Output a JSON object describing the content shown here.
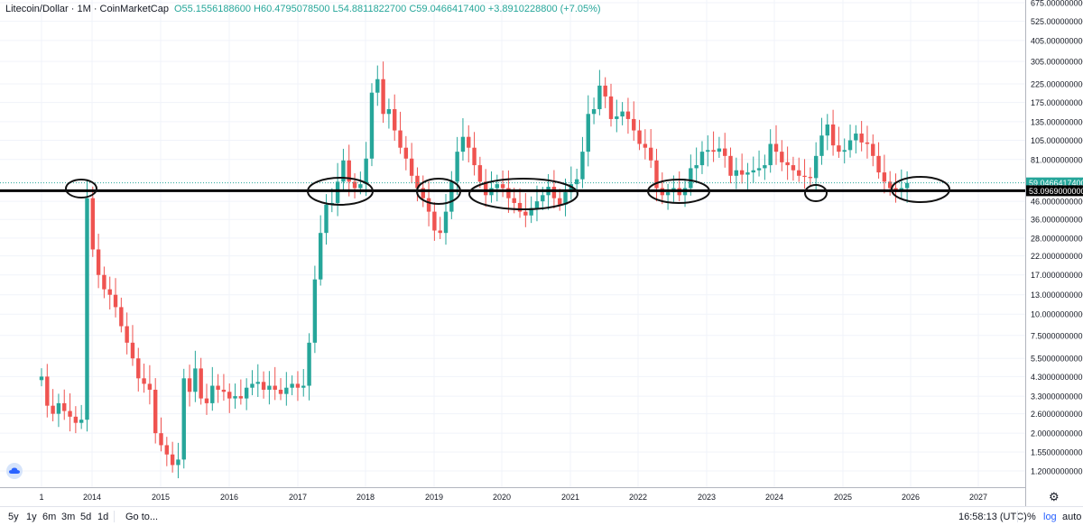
{
  "header": {
    "symbol": "Litecoin/Dollar · 1M · CoinMarketCap",
    "ohlc": "O55.1556188600  H60.4795078500  L54.8811822700  C59.0466417400  +3.8910228800 (+7.05%)"
  },
  "bottom_bar": {
    "timeframes": [
      "5y",
      "1y",
      "6m",
      "3m",
      "5d",
      "1d"
    ],
    "goto": "Go to...",
    "time": "16:58:13 (UTC)",
    "percent": "%",
    "log": "log",
    "auto": "auto"
  },
  "colors": {
    "up": "#26a69a",
    "down": "#ef5350",
    "grid": "#f0f3fa",
    "level": "#000000"
  },
  "icons": {
    "settings": "gear-icon",
    "logo": "tradingview-cloud-icon"
  },
  "chart_data": {
    "type": "candlestick",
    "scale": "log",
    "x_tick_labels": [
      "1",
      "2014",
      "2015",
      "2016",
      "2017",
      "2018",
      "2019",
      "2020",
      "2021",
      "2022",
      "2023",
      "2024",
      "2025",
      "2026",
      "2027"
    ],
    "y_tick_labels": [
      "675.0000000000",
      "525.0000000000",
      "405.0000000000",
      "305.0000000000",
      "225.0000000000",
      "175.0000000000",
      "135.0000000000",
      "105.0000000000",
      "81.0000000000",
      "46.0000000000",
      "36.0000000000",
      "28.0000000000",
      "22.0000000000",
      "17.0000000000",
      "13.0000000000",
      "10.0000000000",
      "7.5000000000",
      "5.5000000000",
      "4.3000000000",
      "3.3000000000",
      "2.6000000000",
      "2.0000000000",
      "1.5500000000",
      "1.2000000000"
    ],
    "y_ticks": [
      675,
      525,
      405,
      305,
      225,
      175,
      135,
      105,
      81,
      46,
      36,
      28,
      22,
      17,
      13,
      10,
      7.5,
      5.5,
      4.3,
      3.3,
      2.6,
      2.0,
      1.55,
      1.2
    ],
    "price_label": "59.0466417400",
    "level_label": "53.0969000000",
    "price_value": 59.04664174,
    "level_value": 53.0969,
    "candles_close": [
      4.3,
      2.9,
      2.6,
      3.0,
      2.7,
      2.5,
      2.3,
      2.4,
      48,
      24,
      17,
      14,
      13,
      11,
      8.5,
      6.8,
      5.5,
      4.2,
      3.9,
      3.6,
      2.0,
      1.7,
      1.5,
      1.3,
      1.4,
      4.2,
      3.5,
      4.8,
      3.2,
      3.0,
      3.8,
      3.6,
      3.5,
      3.2,
      3.3,
      3.2,
      3.7,
      3.9,
      4.0,
      3.6,
      3.8,
      3.6,
      3.4,
      3.7,
      3.9,
      3.7,
      3.8,
      6.8,
      16,
      30,
      44,
      45,
      60,
      80,
      60,
      55,
      58,
      82,
      200,
      240,
      150,
      160,
      120,
      95,
      82,
      65,
      55,
      48,
      40,
      31,
      30,
      40,
      60,
      90,
      110,
      95,
      75,
      60,
      50,
      55,
      58,
      55,
      48,
      45,
      40,
      38,
      42,
      46,
      50,
      56,
      48,
      44,
      52,
      58,
      62,
      90,
      150,
      160,
      220,
      190,
      140,
      145,
      155,
      140,
      120,
      100,
      95,
      80,
      55,
      50,
      52,
      55,
      50,
      55,
      72,
      75,
      90,
      92,
      90,
      94,
      85,
      65,
      70,
      66,
      68,
      70,
      72,
      75,
      100,
      90,
      78,
      75,
      70,
      65,
      64,
      63,
      85,
      112,
      130,
      98,
      90,
      92,
      105,
      115,
      102,
      100,
      85,
      68,
      60,
      55,
      54,
      55,
      59
    ]
  }
}
